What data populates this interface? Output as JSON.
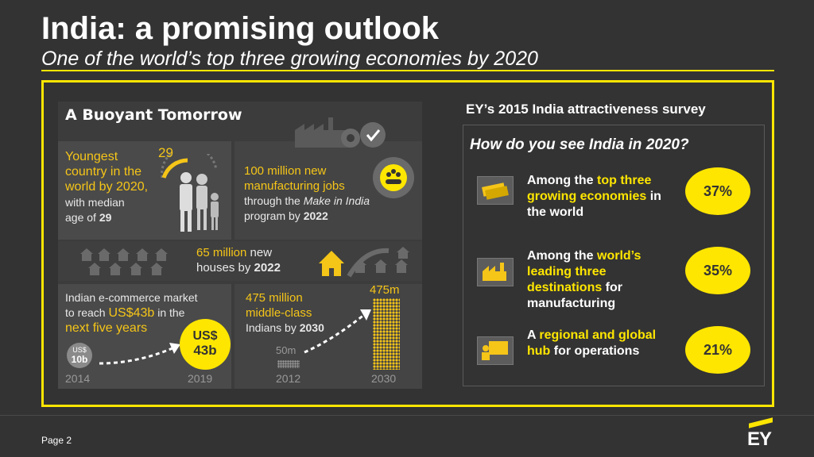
{
  "header": {
    "title": "India: a promising outlook",
    "subtitle": "One of the world’s top three growing economies by 2020"
  },
  "infographic": {
    "title": "A Buoyant Tomorrow",
    "youngest": {
      "line1": "Youngest",
      "line2": "country in the",
      "line3": "world by 2020,",
      "line4": "with median",
      "line5a": "age of ",
      "line5b": "29",
      "age_badge": "29"
    },
    "jobs": {
      "line1": "100 million new",
      "line2": "manufacturing jobs",
      "line3a": "through the ",
      "line3b": "Make in India",
      "line4a": "program by ",
      "line4b": "2022"
    },
    "houses": {
      "line1a": "65 million",
      "line1b": " new",
      "line2a": "houses by ",
      "line2b": "2022"
    },
    "ecommerce": {
      "line1": "Indian e-commerce market",
      "line2a": "to reach ",
      "line2b": "US$43b",
      "line2c": " in the",
      "line3": "next five years",
      "small_coin_line1": "US$",
      "small_coin_line2": "10b",
      "big_coin_line1": "US$",
      "big_coin_line2": "43b",
      "year_start": "2014",
      "year_end": "2019"
    },
    "middleclass": {
      "line1": "475 million",
      "line2": "middle-class",
      "line3a": "Indians by ",
      "line3b": "2030",
      "small_label": "50m",
      "big_label": "475m",
      "year_start": "2012",
      "year_end": "2030"
    }
  },
  "survey": {
    "heading": "EY’s 2015 India attractiveness survey",
    "question": "How do you see India in 2020?",
    "rows": [
      {
        "pre": "Among the ",
        "hl": "top three growing economies",
        "post": " in the world",
        "pct": "37%",
        "icon": "money-stack-icon"
      },
      {
        "pre": "Among the ",
        "hl": "world’s leading three destinations",
        "post": " for manufacturing",
        "pct": "35%",
        "icon": "factory-icon"
      },
      {
        "pre": "A ",
        "hl": "regional and global hub",
        "post": " for operations",
        "pct": "21%",
        "icon": "presentation-icon"
      }
    ]
  },
  "footer": {
    "page": "Page 2",
    "logo": "EY"
  },
  "colors": {
    "background": "#333333",
    "accent": "#ffe600",
    "infographic_yellow": "#f5c518"
  }
}
